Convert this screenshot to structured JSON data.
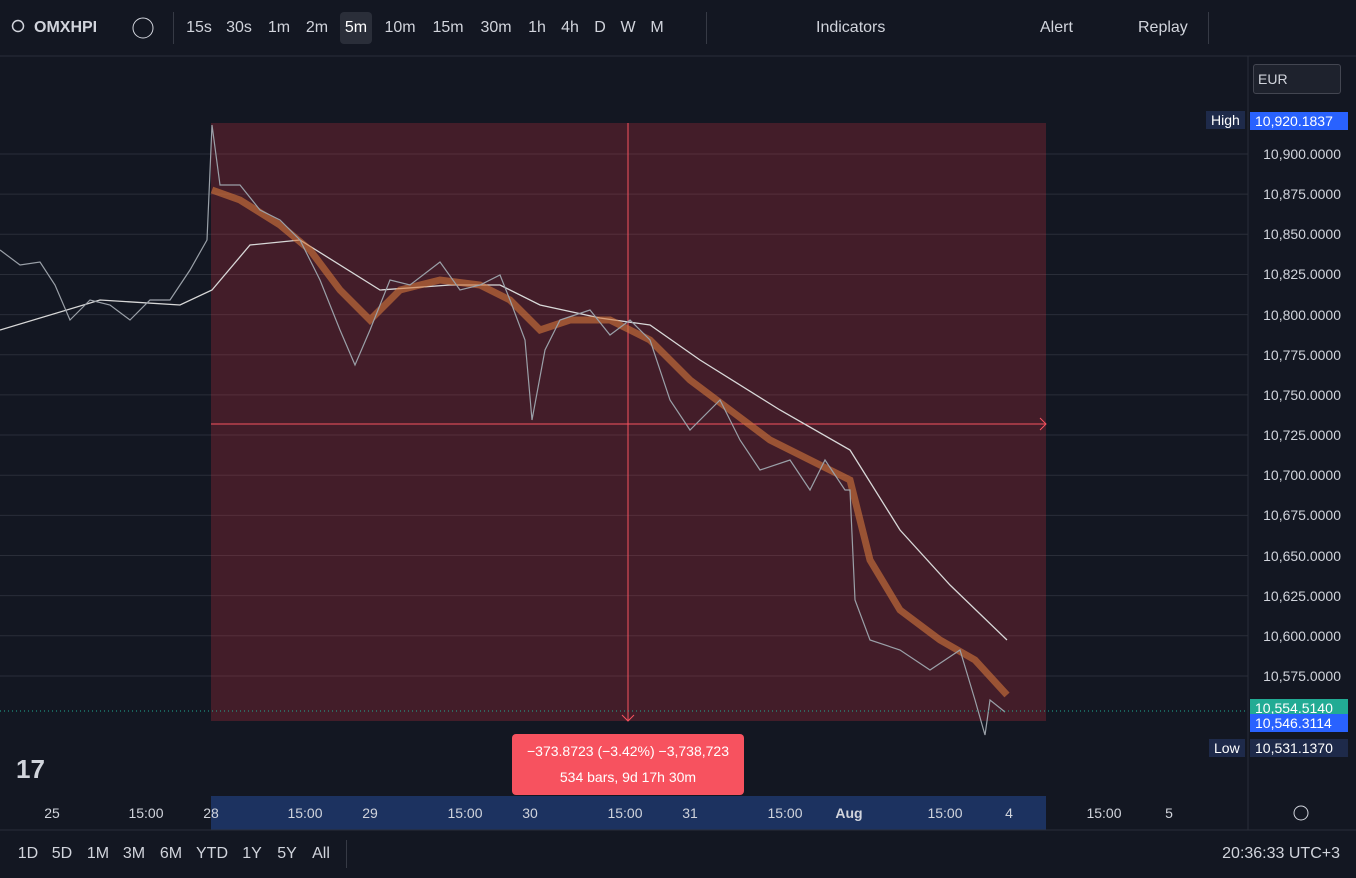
{
  "toolbar": {
    "symbol": "OMXHPI",
    "intervals": [
      "15s",
      "30s",
      "1m",
      "2m",
      "5m",
      "10m",
      "15m",
      "30m",
      "1h",
      "4h",
      "D",
      "W",
      "M"
    ],
    "active_interval": "5m",
    "indicators": "Indicators",
    "alert": "Alert",
    "replay": "Replay"
  },
  "currency": "EUR",
  "price_axis": [
    "10,900.0000",
    "10,875.0000",
    "10,850.0000",
    "10,825.0000",
    "10,800.0000",
    "10,775.0000",
    "10,750.0000",
    "10,725.0000",
    "10,700.0000",
    "10,675.0000",
    "10,650.0000",
    "10,625.0000",
    "10,600.0000",
    "10,575.0000"
  ],
  "high": {
    "label": "High",
    "value": "10,920.1837"
  },
  "low": {
    "label": "Low",
    "value": "10,531.1370"
  },
  "last_prices": [
    "10,554.5140",
    "10,546.3114"
  ],
  "time_axis": [
    "25",
    "15:00",
    "28",
    "15:00",
    "29",
    "15:00",
    "30",
    "15:00",
    "31",
    "15:00",
    "Aug",
    "15:00",
    "4",
    "15:00",
    "5"
  ],
  "measure": {
    "line1": "−373.8723 (−3.42%) −3,738,723",
    "line2": "534 bars, 9d 17h 30m"
  },
  "ranges": [
    "1D",
    "5D",
    "1M",
    "3M",
    "6M",
    "YTD",
    "1Y",
    "5Y",
    "All"
  ],
  "clock": "20:36:33 UTC+3"
}
